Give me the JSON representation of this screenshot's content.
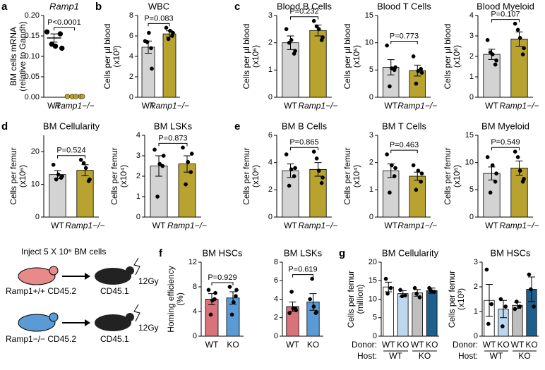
{
  "chart_data": [
    {
      "type": "dot",
      "panel": "a",
      "title": "Ramp1",
      "ylabel": [
        "BM cells mRNA",
        "(relative to Gapdh)"
      ],
      "categories": [
        "WT",
        "Ramp1−/−"
      ],
      "colors": [
        "#000000",
        "#b8a230"
      ],
      "values": [
        0.145,
        0.002
      ],
      "errors": [
        0.01,
        0.001
      ],
      "points": [
        [
          0.16,
          0.155,
          0.13,
          0.12,
          0.125
        ],
        [
          0.002,
          0.002,
          0.002,
          0.002,
          0.002
        ]
      ],
      "ylim": [
        0,
        0.2
      ],
      "yticks": [
        {
          "value": 0,
          "label": "0.00"
        },
        {
          "value": 0.05,
          "label": "0.05"
        },
        {
          "value": 0.1,
          "label": "0.10"
        },
        {
          "value": 0.15,
          "label": "0.15"
        },
        {
          "value": 0.2,
          "label": "0.20"
        }
      ],
      "annotation": "P<0.0001"
    },
    {
      "type": "bar",
      "panel": "b",
      "title": "WBC",
      "ylabel": [
        "Cells per µl blood",
        "(x10³)"
      ],
      "categories": [
        "WT",
        "Ramp1−/−"
      ],
      "colors": [
        "#d3d3d3",
        "#b8a230"
      ],
      "values": [
        4.9,
        6.2
      ],
      "errors": [
        0.6,
        0.3
      ],
      "points": [
        [
          5.5,
          4.8,
          5.4,
          2.8,
          6.3
        ],
        [
          6.8,
          6.0,
          5.7,
          6.3,
          6.5
        ]
      ],
      "ylim": [
        0,
        8
      ],
      "yticks": [
        0,
        2,
        4,
        6,
        8
      ],
      "annotation": "P=0.083"
    },
    {
      "type": "bar",
      "panel": "c",
      "title": "Blood B Cells",
      "ylabel": [
        "Cells per µl blood",
        "(x10⁶)"
      ],
      "categories": [
        "WT",
        "Ramp1−/−"
      ],
      "colors": [
        "#d3d3d3",
        "#b8a230"
      ],
      "values": [
        2.0,
        2.45
      ],
      "errors": [
        0.25,
        0.2
      ],
      "points": [
        [
          2.5,
          1.6,
          2.0,
          1.7,
          2.1
        ],
        [
          2.8,
          2.1,
          2.6,
          2.2,
          2.5
        ]
      ],
      "ylim": [
        0,
        3
      ],
      "yticks": [
        0,
        1,
        2,
        3
      ],
      "annotation": "P=0.232"
    },
    {
      "type": "bar",
      "title": "Blood T Cells",
      "ylabel": [
        "Cells per µl blood",
        "(x10⁵)"
      ],
      "categories": [
        "WT",
        "Ramp1−/−"
      ],
      "colors": [
        "#d3d3d3",
        "#b8a230"
      ],
      "values": [
        5.5,
        4.9
      ],
      "errors": [
        1.4,
        1.0
      ],
      "points": [
        [
          9.5,
          5.0,
          2.0,
          5.5,
          5.3
        ],
        [
          7.5,
          5.2,
          2.5,
          4.5,
          4.8
        ]
      ],
      "ylim": [
        0,
        15
      ],
      "yticks": [
        0,
        5,
        10,
        15
      ],
      "annotation": "P=0.773"
    },
    {
      "type": "bar",
      "title": "Blood Myeloid",
      "ylabel": [
        "Cells per µl blood",
        "(x10⁶)"
      ],
      "categories": [
        "WT",
        "Ramp1−/−"
      ],
      "colors": [
        "#d3d3d3",
        "#b8a230"
      ],
      "values": [
        2.1,
        2.85
      ],
      "errors": [
        0.25,
        0.35
      ],
      "points": [
        [
          2.8,
          1.6,
          2.2,
          1.8,
          2.1
        ],
        [
          3.6,
          2.1,
          3.3,
          2.4,
          2.9
        ]
      ],
      "ylim": [
        0,
        4
      ],
      "yticks": [
        0,
        1,
        2,
        3,
        4
      ],
      "annotation": "P=0.107"
    },
    {
      "type": "bar",
      "panel": "d",
      "title": "BM Cellularity",
      "ylabel": [
        "Cells per femur",
        "(x10⁶)"
      ],
      "categories": [
        "WT",
        "Ramp1−/−"
      ],
      "colors": [
        "#d3d3d3",
        "#b8a230"
      ],
      "values": [
        13.0,
        14.3
      ],
      "errors": [
        1.2,
        1.7
      ],
      "points": [
        [
          16.0,
          12.0,
          11.5,
          12.5,
          13.0
        ],
        [
          17.5,
          11.0,
          16.5,
          11.5,
          15.0
        ]
      ],
      "ylim": [
        0,
        25
      ],
      "yticks": [
        0,
        10,
        20
      ],
      "annotation": "P=0.524"
    },
    {
      "type": "bar",
      "title": "BM LSKs",
      "ylabel": [
        "Cells per femur",
        "(x10⁴)"
      ],
      "categories": [
        "WT",
        "Ramp1−/−"
      ],
      "colors": [
        "#d3d3d3",
        "#b8a230"
      ],
      "values": [
        2.5,
        2.6
      ],
      "errors": [
        0.5,
        0.4
      ],
      "points": [
        [
          3.3,
          2.5,
          1.0,
          3.0,
          2.6
        ],
        [
          3.4,
          2.2,
          1.6,
          3.1,
          2.7
        ]
      ],
      "ylim": [
        0,
        4
      ],
      "yticks": [
        0,
        1,
        2,
        3,
        4
      ],
      "annotation": "P=0.873"
    },
    {
      "type": "bar",
      "panel": "e",
      "title": "BM B Cells",
      "ylabel": [
        "Cells per femur",
        "(x10⁶)"
      ],
      "categories": [
        "WT",
        "Ramp1−/−"
      ],
      "colors": [
        "#d3d3d3",
        "#b8a230"
      ],
      "values": [
        3.4,
        3.5
      ],
      "errors": [
        0.5,
        0.5
      ],
      "points": [
        [
          4.6,
          3.0,
          2.3,
          3.6,
          3.5
        ],
        [
          4.8,
          2.5,
          4.3,
          2.9,
          3.4
        ]
      ],
      "ylim": [
        0,
        6
      ],
      "yticks": [
        0,
        2,
        4,
        6
      ],
      "annotation": "P=0.865"
    },
    {
      "type": "bar",
      "title": "BM T Cells",
      "ylabel": [
        "Cells per femur",
        "(x10⁴)"
      ],
      "categories": [
        "WT",
        "Ramp1−/−"
      ],
      "colors": [
        "#d3d3d3",
        "#b8a230"
      ],
      "values": [
        1.7,
        1.5
      ],
      "errors": [
        0.25,
        0.15
      ],
      "points": [
        [
          2.3,
          1.5,
          0.9,
          1.8,
          1.9
        ],
        [
          1.9,
          1.3,
          1.0,
          1.6,
          1.7
        ]
      ],
      "ylim": [
        0,
        3
      ],
      "yticks": [
        0,
        1,
        2,
        3
      ],
      "annotation": "P=0.463"
    },
    {
      "type": "bar",
      "title": "BM Myeloid",
      "ylabel": [
        "Cells per femur",
        "(x10⁶)"
      ],
      "categories": [
        "WT",
        "Ramp1−/−"
      ],
      "colors": [
        "#d3d3d3",
        "#b8a230"
      ],
      "values": [
        8.0,
        9.0
      ],
      "errors": [
        1.2,
        1.3
      ],
      "points": [
        [
          11.0,
          6.5,
          4.5,
          8.0,
          9.5
        ],
        [
          12.0,
          6.5,
          11.0,
          7.0,
          8.5
        ]
      ],
      "ylim": [
        0,
        15
      ],
      "yticks": [
        0,
        5,
        10,
        15
      ],
      "annotation": "P=0.549"
    },
    {
      "type": "bar",
      "panel": "f",
      "title": "BM HSCs",
      "ylabel": [
        "Homing efficiency",
        "(%)"
      ],
      "categories": [
        "WT",
        "KO"
      ],
      "colors": [
        "#d9727a",
        "#5b9bd5"
      ],
      "values": [
        6.0,
        6.2
      ],
      "errors": [
        0.9,
        1.0
      ],
      "points": [
        [
          7.5,
          6.0,
          3.5,
          7.0,
          5.8
        ],
        [
          8.0,
          6.5,
          3.5,
          7.5,
          5.5
        ]
      ],
      "ylim": [
        0,
        12
      ],
      "yticks": [
        0,
        4,
        8,
        12
      ],
      "annotation": "P=0.929"
    },
    {
      "type": "bar",
      "title": "BM LSKs",
      "categories": [
        "WT",
        "KO"
      ],
      "colors": [
        "#d9727a",
        "#5b9bd5"
      ],
      "values": [
        3.2,
        3.7
      ],
      "errors": [
        0.5,
        0.9
      ],
      "points": [
        [
          2.5,
          3.0,
          4.8,
          2.8,
          3.0
        ],
        [
          4.0,
          2.5,
          6.2,
          2.6,
          3.2
        ]
      ],
      "ylim": [
        0,
        8
      ],
      "yticks": [
        0,
        2,
        4,
        6,
        8
      ],
      "annotation": "P=0.619"
    },
    {
      "type": "bar",
      "panel": "g",
      "title": "BM Cellularity",
      "ylabel": [
        "Cells per femur",
        "(million)"
      ],
      "categories": [
        "WT",
        "KO",
        "WT",
        "KO"
      ],
      "host": [
        "WT",
        "KO"
      ],
      "row_labels": [
        "Donor:",
        "Host:"
      ],
      "colors": [
        "#ffffff",
        "#bcd7ee",
        "#bfbfbf",
        "#1f5f8b"
      ],
      "values": [
        13.3,
        11.5,
        11.7,
        12.3
      ],
      "errors": [
        1.3,
        0.8,
        0.9,
        0.7
      ],
      "points": [
        [
          15.5,
          13.0,
          11.5
        ],
        [
          12.5,
          11.0,
          10.8
        ],
        [
          13.0,
          10.5,
          11.5
        ],
        [
          13.0,
          12.0,
          12.2
        ]
      ],
      "ylim": [
        0,
        20
      ],
      "yticks": [
        0,
        5,
        10,
        15,
        20
      ]
    },
    {
      "type": "bar",
      "title": "BM HSCs",
      "ylabel": [
        "Cells per femur",
        "(x10³)"
      ],
      "categories": [
        "WT",
        "KO",
        "WT",
        "KO"
      ],
      "host": [
        "WT",
        "KO"
      ],
      "row_labels": [
        "Donor:",
        "Host:"
      ],
      "colors": [
        "#ffffff",
        "#bcd7ee",
        "#bfbfbf",
        "#1f5f8b"
      ],
      "values": [
        1.45,
        1.1,
        1.25,
        1.9
      ],
      "errors": [
        0.65,
        0.35,
        0.12,
        0.5
      ],
      "points": [
        [
          2.7,
          1.3,
          0.5
        ],
        [
          1.5,
          1.2,
          0.4
        ],
        [
          1.1,
          1.2,
          1.4
        ],
        [
          2.5,
          1.2,
          1.9
        ]
      ],
      "ylim": [
        0,
        3
      ],
      "yticks": [
        0,
        1,
        2,
        3
      ]
    }
  ],
  "diagram": {
    "title": "Inject 5 X 10⁶ BM cells",
    "rows": [
      {
        "genotype": "Ramp1+/+ CD45.2",
        "recipient": "CD45.1",
        "dose": "12Gy"
      },
      {
        "genotype": "Ramp1−/− CD45.2",
        "recipient": "CD45.1",
        "dose": "12Gy"
      }
    ]
  }
}
